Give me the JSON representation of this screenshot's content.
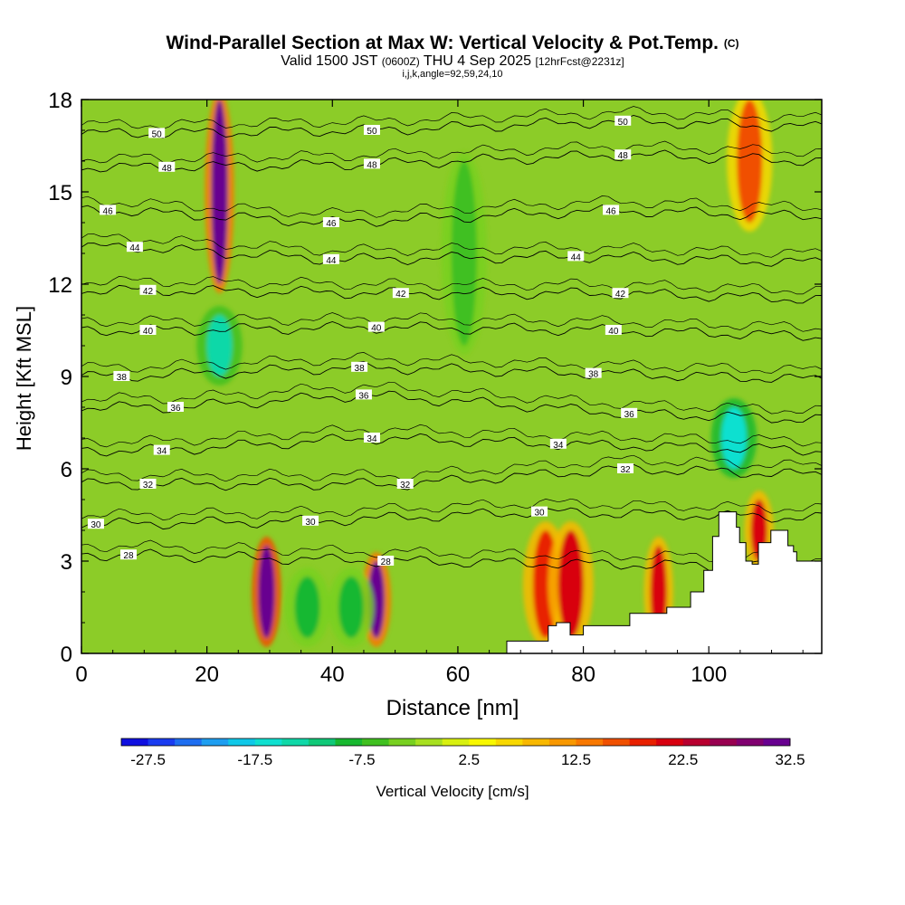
{
  "title": {
    "main": "Wind-Parallel Section at Max W: Vertical Velocity & Pot.Temp.",
    "copyright": "(C)",
    "valid_prefix": "Valid 1500 JST",
    "valid_utc": "(0600Z)",
    "valid_date": "THU 4 Sep 2025",
    "forecast": "[12hrFcst@2231z]",
    "indices": "i,j,k,angle=92,59,24,10"
  },
  "colorbar": {
    "label": "Vertical Velocity [cm/s]",
    "tick_labels": [
      "-27.5",
      "-17.5",
      "-7.5",
      "2.5",
      "12.5",
      "22.5",
      "32.5"
    ],
    "colors": [
      "#1010e0",
      "#1a3cf0",
      "#1e6ef0",
      "#1e9ef0",
      "#10c8e8",
      "#10e0d0",
      "#10d8a8",
      "#10c878",
      "#18b830",
      "#40c020",
      "#78d020",
      "#a8e020",
      "#d8f010",
      "#f8f800",
      "#f8d800",
      "#f8b800",
      "#f89800",
      "#f87800",
      "#f05000",
      "#e82000",
      "#d80010",
      "#b80030",
      "#980050",
      "#800070",
      "#680090"
    ],
    "min": -30,
    "step": 2.5
  },
  "chart_data": {
    "type": "heatmap",
    "title": "Wind-Parallel Section at Max W: Vertical Velocity & Pot.Temp.",
    "xlabel": "Distance [nm]",
    "ylabel": "Height [Kft MSL]",
    "xlim": [
      0,
      118
    ],
    "ylim": [
      0,
      18
    ],
    "xticks": [
      0,
      20,
      40,
      60,
      80,
      100
    ],
    "yticks": [
      0,
      3,
      6,
      9,
      12,
      15,
      18
    ],
    "field": "Vertical Velocity [cm/s]",
    "contour_field": "Potential temperature",
    "background_w": 2,
    "features": [
      {
        "x": 22,
        "y_range": [
          12,
          18
        ],
        "w": 30,
        "kind": "updraft"
      },
      {
        "x": 22,
        "y_range": [
          9,
          11
        ],
        "w": -15,
        "kind": "downdraft"
      },
      {
        "x": 29.5,
        "y_range": [
          0.5,
          3.5
        ],
        "w": 38,
        "kind": "updraft"
      },
      {
        "x": 47,
        "y_range": [
          0.5,
          3
        ],
        "w": 30,
        "kind": "updraft"
      },
      {
        "x": 36,
        "y_range": [
          0.5,
          2.5
        ],
        "w": -10,
        "kind": "downdraft"
      },
      {
        "x": 43,
        "y_range": [
          0.5,
          2.5
        ],
        "w": -10,
        "kind": "downdraft"
      },
      {
        "x": 61,
        "y_range": [
          10,
          16
        ],
        "w": -7,
        "kind": "downdraft"
      },
      {
        "x": 74,
        "y_range": [
          0.5,
          4
        ],
        "w": 18,
        "kind": "updraft"
      },
      {
        "x": 78,
        "y_range": [
          0.5,
          4
        ],
        "w": 20,
        "kind": "updraft"
      },
      {
        "x": 92,
        "y_range": [
          0.5,
          3.5
        ],
        "w": 22,
        "kind": "updraft"
      },
      {
        "x": 104,
        "y_range": [
          6,
          8
        ],
        "w": -17,
        "kind": "downdraft"
      },
      {
        "x": 106.5,
        "y_range": [
          14,
          18
        ],
        "w": 15,
        "kind": "updraft"
      },
      {
        "x": 108,
        "y_range": [
          3,
          5
        ],
        "w": 22,
        "kind": "updraft"
      }
    ],
    "isentropes": [
      {
        "value": 28,
        "label_positions": [
          [
            7.5,
            3.2
          ],
          [
            48.5,
            3.0
          ]
        ]
      },
      {
        "value": 30,
        "label_positions": [
          [
            2.3,
            4.2
          ],
          [
            36.5,
            4.3
          ],
          [
            73,
            4.6
          ]
        ]
      },
      {
        "value": 32,
        "label_positions": [
          [
            10.6,
            5.5
          ],
          [
            51.6,
            5.5
          ],
          [
            86.7,
            6.0
          ]
        ]
      },
      {
        "value": 34,
        "label_positions": [
          [
            12.8,
            6.6
          ],
          [
            46.3,
            7.0
          ],
          [
            76,
            6.8
          ]
        ]
      },
      {
        "value": 36,
        "label_positions": [
          [
            15,
            8.0
          ],
          [
            45,
            8.4
          ],
          [
            87.3,
            7.8
          ]
        ]
      },
      {
        "value": 38,
        "label_positions": [
          [
            6.4,
            9.0
          ],
          [
            44.3,
            9.3
          ],
          [
            81.6,
            9.1
          ]
        ]
      },
      {
        "value": 40,
        "label_positions": [
          [
            10.6,
            10.5
          ],
          [
            47,
            10.6
          ],
          [
            84.8,
            10.5
          ]
        ]
      },
      {
        "value": 42,
        "label_positions": [
          [
            10.6,
            11.8
          ],
          [
            50.9,
            11.7
          ],
          [
            85.9,
            11.7
          ]
        ]
      },
      {
        "value": 44,
        "label_positions": [
          [
            8.5,
            13.2
          ],
          [
            39.8,
            12.8
          ],
          [
            78.8,
            12.9
          ]
        ]
      },
      {
        "value": 46,
        "label_positions": [
          [
            4.2,
            14.4
          ],
          [
            39.8,
            14.0
          ],
          [
            84.4,
            14.4
          ]
        ]
      },
      {
        "value": 48,
        "label_positions": [
          [
            13.6,
            15.8
          ],
          [
            46.3,
            15.9
          ],
          [
            86.3,
            16.2
          ]
        ]
      },
      {
        "value": 50,
        "label_positions": [
          [
            12,
            16.9
          ],
          [
            46.3,
            17.0
          ],
          [
            86.3,
            17.3
          ]
        ]
      }
    ],
    "terrain": [
      [
        0,
        0
      ],
      [
        67.8,
        0
      ],
      [
        67.8,
        0.4
      ],
      [
        74.4,
        0.4
      ],
      [
        74.4,
        0.9
      ],
      [
        75.7,
        0.9
      ],
      [
        75.7,
        1.0
      ],
      [
        77.9,
        1.0
      ],
      [
        77.9,
        0.6
      ],
      [
        80,
        0.6
      ],
      [
        80,
        0.9
      ],
      [
        87.4,
        0.9
      ],
      [
        87.4,
        1.3
      ],
      [
        93.3,
        1.3
      ],
      [
        93.3,
        1.5
      ],
      [
        97.1,
        1.5
      ],
      [
        97.1,
        2.0
      ],
      [
        99.2,
        2.0
      ],
      [
        99.2,
        2.7
      ],
      [
        100.6,
        2.7
      ],
      [
        100.6,
        3.8
      ],
      [
        101.6,
        3.8
      ],
      [
        101.6,
        4.6
      ],
      [
        104.4,
        4.6
      ],
      [
        104.4,
        4.1
      ],
      [
        104.9,
        4.1
      ],
      [
        104.9,
        3.6
      ],
      [
        105.9,
        3.6
      ],
      [
        105.9,
        3.0
      ],
      [
        106.9,
        3.0
      ],
      [
        106.9,
        2.9
      ],
      [
        107.9,
        2.9
      ],
      [
        107.9,
        3.6
      ],
      [
        109.9,
        3.6
      ],
      [
        109.9,
        4.0
      ],
      [
        112.6,
        4.0
      ],
      [
        112.6,
        3.5
      ],
      [
        113.5,
        3.5
      ],
      [
        113.5,
        3.3
      ],
      [
        114,
        3.3
      ],
      [
        114,
        3.0
      ],
      [
        118,
        3.0
      ],
      [
        118,
        0
      ]
    ]
  }
}
